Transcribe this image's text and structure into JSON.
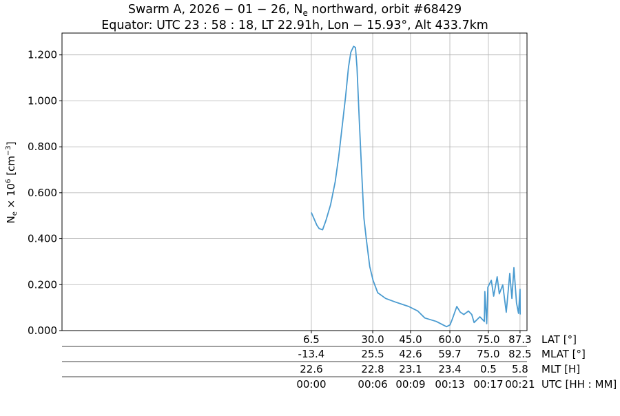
{
  "chart_data": {
    "type": "line",
    "title_line1": {
      "prefix": "Swarm A,  2026 − 01 − 26,  N",
      "sub": "e",
      "suffix": " northward,  orbit #68429"
    },
    "title_line2": "Equator:  UTC 23 : 58 : 18,  LT 22.91h,  Lon  − 15.93°,  Alt 433.7km",
    "ylabel": {
      "base": "N",
      "sub": "e",
      "mid": " × 10",
      "sup": "6",
      "unit": " [cm",
      "unit_sup": "−3",
      "end": "]"
    },
    "xlim": [
      "23:34:57",
      "00:21:40"
    ],
    "ylim": [
      0,
      1.295
    ],
    "grid": true,
    "line_color": "#4a9bd0",
    "yticks": [
      {
        "value": 0,
        "label": "0.000"
      },
      {
        "value": 0.2,
        "label": "0.200"
      },
      {
        "value": 0.4,
        "label": "0.400"
      },
      {
        "value": 0.6,
        "label": "0.600"
      },
      {
        "value": 0.8,
        "label": "0.800"
      },
      {
        "value": 1.0,
        "label": "1.000"
      },
      {
        "value": 1.2,
        "label": "1.200"
      }
    ],
    "xticks": [
      "00:00:00",
      "00:06:10",
      "00:09:58",
      "00:13:55",
      "00:17:47",
      "00:20:58"
    ],
    "tick_table": [
      {
        "label": "LAT [°]",
        "values": [
          "6.5",
          "30.0",
          "45.0",
          "60.0",
          "75.0",
          "87.3"
        ]
      },
      {
        "label": "MLAT [°]",
        "values": [
          "-13.4",
          "25.5",
          "42.6",
          "59.7",
          "75.0",
          "82.5"
        ]
      },
      {
        "label": "MLT [H]",
        "values": [
          "22.6",
          "22.8",
          "23.1",
          "23.4",
          "0.5",
          "5.8"
        ]
      },
      {
        "label": "UTC [HH : MM]",
        "values": [
          "00:00",
          "00:06",
          "00:09",
          "00:13",
          "00:17",
          "00:21"
        ]
      }
    ],
    "series": [
      {
        "points": [
          [
            "00:00:00",
            0.514
          ],
          [
            "00:00:33",
            0.459
          ],
          [
            "00:00:47",
            0.444
          ],
          [
            "00:01:08",
            0.439
          ],
          [
            "00:01:28",
            0.479
          ],
          [
            "00:01:56",
            0.548
          ],
          [
            "00:02:24",
            0.648
          ],
          [
            "00:02:45",
            0.758
          ],
          [
            "00:03:12",
            0.928
          ],
          [
            "00:03:26",
            1.017
          ],
          [
            "00:03:44",
            1.147
          ],
          [
            "00:03:58",
            1.212
          ],
          [
            "00:04:15",
            1.237
          ],
          [
            "00:04:26",
            1.232
          ],
          [
            "00:04:35",
            1.147
          ],
          [
            "00:04:49",
            0.918
          ],
          [
            "00:05:03",
            0.698
          ],
          [
            "00:05:17",
            0.489
          ],
          [
            "00:05:31",
            0.399
          ],
          [
            "00:05:52",
            0.279
          ],
          [
            "00:06:12",
            0.219
          ],
          [
            "00:06:40",
            0.165
          ],
          [
            "00:07:28",
            0.14
          ],
          [
            "00:08:24",
            0.125
          ],
          [
            "00:09:05",
            0.115
          ],
          [
            "00:09:47",
            0.105
          ],
          [
            "00:10:42",
            0.085
          ],
          [
            "00:11:24",
            0.055
          ],
          [
            "00:12:33",
            0.04
          ],
          [
            "00:13:35",
            0.017
          ],
          [
            "00:13:56",
            0.025
          ],
          [
            "00:14:10",
            0.05
          ],
          [
            "00:14:37",
            0.105
          ],
          [
            "00:14:58",
            0.08
          ],
          [
            "00:15:19",
            0.07
          ],
          [
            "00:15:47",
            0.085
          ],
          [
            "00:16:07",
            0.07
          ],
          [
            "00:16:21",
            0.035
          ],
          [
            "00:16:56",
            0.06
          ],
          [
            "00:17:23",
            0.04
          ],
          [
            "00:17:26",
            0.17
          ],
          [
            "00:17:37",
            0.03
          ],
          [
            "00:17:44",
            0.189
          ],
          [
            "00:18:05",
            0.219
          ],
          [
            "00:18:19",
            0.15
          ],
          [
            "00:18:40",
            0.234
          ],
          [
            "00:18:53",
            0.16
          ],
          [
            "00:19:14",
            0.199
          ],
          [
            "00:19:35",
            0.08
          ],
          [
            "00:19:56",
            0.249
          ],
          [
            "00:20:09",
            0.14
          ],
          [
            "00:20:21",
            0.274
          ],
          [
            "00:20:37",
            0.12
          ],
          [
            "00:20:49",
            0.075
          ],
          [
            "00:20:58",
            0.18
          ],
          [
            "00:20:59",
            0.07
          ]
        ]
      }
    ]
  }
}
